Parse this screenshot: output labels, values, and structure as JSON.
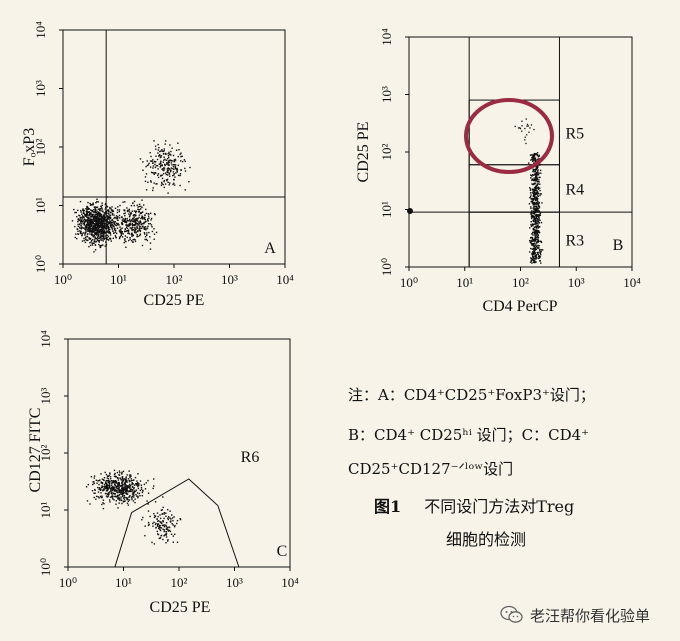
{
  "chart_data": [
    {
      "type": "scatter",
      "panel_label": "A",
      "xlabel": "CD25 PE",
      "ylabel": "FₒxP3",
      "xscale": "log",
      "yscale": "log",
      "xlim": [
        1,
        10000
      ],
      "ylim": [
        1,
        10000
      ],
      "x_ticks": [
        "10⁰",
        "10¹",
        "10²",
        "10³",
        "10⁴"
      ],
      "y_ticks": [
        "10⁰",
        "10¹",
        "10²",
        "10³",
        "10⁴"
      ],
      "quadrant_lines": {
        "x": 6,
        "y": 14
      },
      "clusters": [
        {
          "region": "low-low dense",
          "x_range": [
            1,
            12
          ],
          "y_range": [
            1.5,
            20
          ],
          "density": "very high"
        },
        {
          "region": "low-low spread",
          "x_range": [
            6,
            60
          ],
          "y_range": [
            1.5,
            20
          ],
          "density": "high"
        },
        {
          "region": "CD25+FoxP3+",
          "x_range": [
            12,
            300
          ],
          "y_range": [
            14,
            250
          ],
          "density": "moderate"
        }
      ]
    },
    {
      "type": "scatter",
      "panel_label": "B",
      "xlabel": "CD4 PerCP",
      "ylabel": "CD25 PE",
      "xscale": "log",
      "yscale": "log",
      "xlim": [
        1,
        10000
      ],
      "ylim": [
        1,
        10000
      ],
      "x_ticks": [
        "10⁰",
        "10¹",
        "10²",
        "10³",
        "10⁴"
      ],
      "y_ticks": [
        "10⁰",
        "10¹",
        "10²",
        "10³",
        "10⁴"
      ],
      "gates": [
        {
          "name": "R3",
          "x_range": [
            12,
            500
          ],
          "y_range": [
            1,
            9
          ]
        },
        {
          "name": "R4",
          "x_range": [
            12,
            500
          ],
          "y_range": [
            9,
            60
          ]
        },
        {
          "name": "R5",
          "x_range": [
            12,
            500
          ],
          "y_range": [
            60,
            800
          ]
        }
      ],
      "population": {
        "x_center": 180,
        "y_range": [
          1.2,
          100
        ]
      },
      "highlight": "R5"
    },
    {
      "type": "scatter",
      "panel_label": "C",
      "xlabel": "CD25 PE",
      "ylabel": "CD127 FITC",
      "xscale": "log",
      "yscale": "log",
      "xlim": [
        1,
        10000
      ],
      "ylim": [
        1,
        10000
      ],
      "x_ticks": [
        "10⁰",
        "10¹",
        "10²",
        "10³",
        "10⁴"
      ],
      "y_ticks": [
        "10⁰",
        "10¹",
        "10²",
        "10³",
        "10⁴"
      ],
      "gates": [
        {
          "name": "R6",
          "polygon": [
            [
              7,
              1
            ],
            [
              14,
              9
            ],
            [
              150,
              35
            ],
            [
              500,
              12
            ],
            [
              1200,
              1
            ]
          ]
        }
      ],
      "clusters": [
        {
          "region": "CD127 high",
          "x_range": [
            1,
            100
          ],
          "y_range": [
            8,
            100
          ]
        },
        {
          "region": "CD127 low",
          "x_range": [
            12,
            200
          ],
          "y_range": [
            2,
            20
          ]
        }
      ]
    }
  ],
  "notes": {
    "line1": "注：A：CD4⁺CD25⁺FoxP3⁺设门；",
    "line2": "B：CD4⁺ CD25ʰⁱ 设门；C：CD4⁺",
    "line3": "CD25⁺CD127⁻ᐟˡᵒʷ设门"
  },
  "figure_caption": {
    "number": "图1",
    "line1": "不同设门方法对Treg",
    "line2": "细胞的检测"
  },
  "watermark": {
    "icon": "wechat-icon",
    "text": "老汪帮你看化验单"
  },
  "colors": {
    "background": "#f7f3e8",
    "dots": "#111111",
    "highlight_circle": "#9b2b43"
  }
}
